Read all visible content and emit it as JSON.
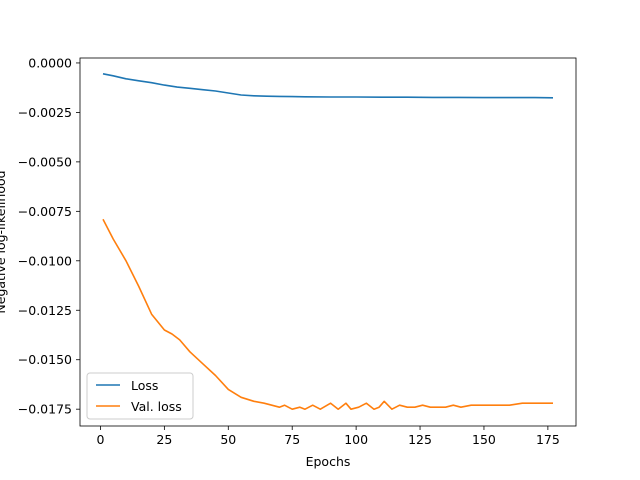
{
  "chart_data": {
    "type": "line",
    "xlabel": "Epochs",
    "ylabel": "Negative log-likelihood",
    "xlim": [
      -8,
      186
    ],
    "ylim": [
      -0.01835,
      0.00025
    ],
    "xticks": [
      0,
      25,
      50,
      75,
      100,
      125,
      150,
      175
    ],
    "xtick_labels": [
      "0",
      "25",
      "50",
      "75",
      "100",
      "125",
      "150",
      "175"
    ],
    "yticks": [
      0.0,
      -0.0025,
      -0.005,
      -0.0075,
      -0.01,
      -0.0125,
      -0.015,
      -0.0175
    ],
    "ytick_labels": [
      "0.0000",
      "−0.0025",
      "−0.0050",
      "−0.0075",
      "−0.0100",
      "−0.0125",
      "−0.0150",
      "−0.0175"
    ],
    "grid": false,
    "legend_position": "lower-left",
    "series": [
      {
        "name": "Loss",
        "color": "#1f77b4",
        "x": [
          1,
          5,
          10,
          15,
          20,
          25,
          30,
          35,
          40,
          45,
          50,
          55,
          60,
          65,
          70,
          75,
          80,
          90,
          100,
          110,
          120,
          130,
          140,
          150,
          160,
          170,
          177
        ],
        "y": [
          -0.00055,
          -0.00065,
          -0.0008,
          -0.0009,
          -0.001,
          -0.00112,
          -0.00122,
          -0.00128,
          -0.00135,
          -0.00142,
          -0.00152,
          -0.00162,
          -0.00166,
          -0.00168,
          -0.00169,
          -0.0017,
          -0.00171,
          -0.00172,
          -0.00172,
          -0.00173,
          -0.00173,
          -0.00174,
          -0.00174,
          -0.00175,
          -0.00175,
          -0.00175,
          -0.00176
        ]
      },
      {
        "name": "Val. loss",
        "color": "#ff7f0e",
        "x": [
          1,
          5,
          10,
          15,
          20,
          25,
          28,
          31,
          35,
          40,
          45,
          50,
          55,
          60,
          64,
          67,
          70,
          72,
          75,
          78,
          80,
          83,
          86,
          90,
          93,
          96,
          98,
          101,
          104,
          107,
          109,
          111,
          114,
          117,
          120,
          123,
          126,
          129,
          132,
          135,
          138,
          141,
          145,
          150,
          155,
          160,
          165,
          168,
          171,
          174,
          177
        ],
        "y": [
          -0.0079,
          -0.0089,
          -0.01,
          -0.0113,
          -0.0127,
          -0.0135,
          -0.0137,
          -0.014,
          -0.0146,
          -0.0152,
          -0.0158,
          -0.0165,
          -0.0169,
          -0.0171,
          -0.0172,
          -0.0173,
          -0.0174,
          -0.0173,
          -0.0175,
          -0.0174,
          -0.0175,
          -0.0173,
          -0.0175,
          -0.0172,
          -0.0175,
          -0.0172,
          -0.0175,
          -0.0174,
          -0.0172,
          -0.0175,
          -0.0174,
          -0.0171,
          -0.0175,
          -0.0173,
          -0.0174,
          -0.0174,
          -0.0173,
          -0.0174,
          -0.0174,
          -0.0174,
          -0.0173,
          -0.0174,
          -0.0173,
          -0.0173,
          -0.0173,
          -0.0173,
          -0.0172,
          -0.0172,
          -0.0172,
          -0.0172,
          -0.0172
        ]
      }
    ]
  }
}
